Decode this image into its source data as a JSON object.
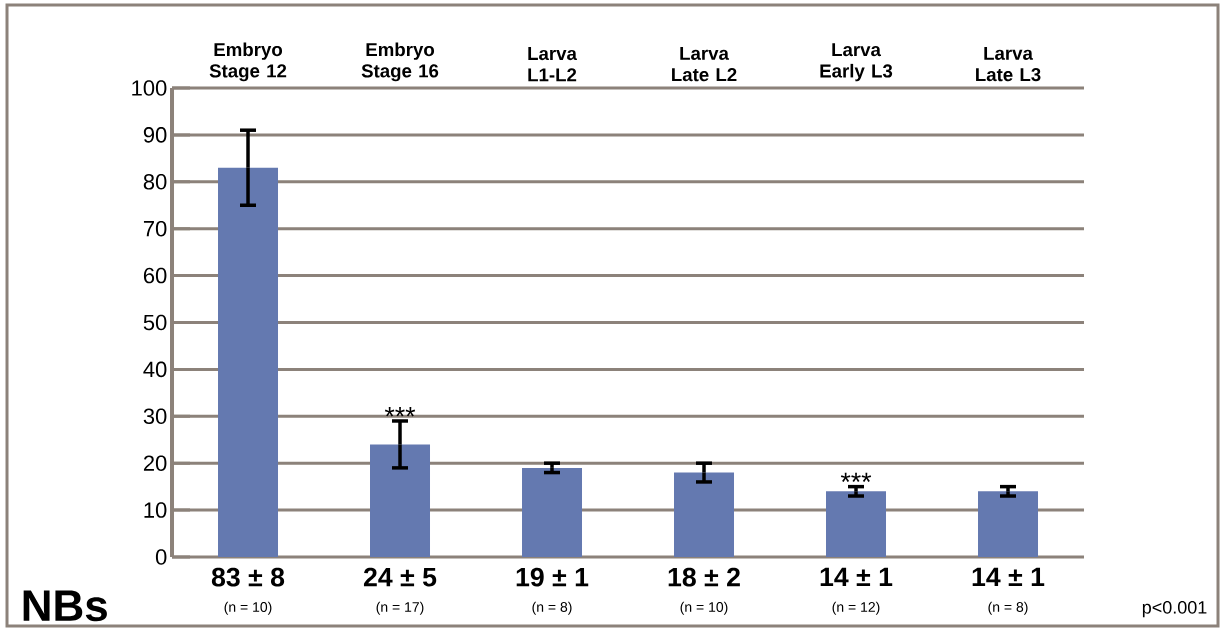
{
  "chart_data": {
    "type": "bar",
    "categories": [
      "Embryo Stage 12",
      "Embryo Stage 16",
      "Larva L1-L2",
      "Larva Late L2",
      "Larva Early L3",
      "Larva Late L3"
    ],
    "values": [
      83,
      24,
      19,
      18,
      14,
      14
    ],
    "errors": [
      8,
      5,
      1,
      2,
      1,
      1
    ],
    "value_labels": [
      "83 ± 8",
      "24 ± 5",
      "19 ± 1",
      "18 ± 2",
      "14 ± 1",
      "14 ± 1"
    ],
    "color": "#6479b0",
    "ylabel": "NBs",
    "ylim": [
      0,
      100
    ],
    "yticks": [
      0,
      10,
      20,
      30,
      40,
      50,
      60,
      70,
      80,
      90,
      100
    ],
    "grid": "y",
    "annotations": [
      "(n = 10)",
      "(n = 17)",
      "(n = 8)",
      "(n = 10)",
      "(n = 12)",
      "(n = 8)",
      {
        "text": "***",
        "x": "Embryo Stage 16",
        "y": 29
      },
      {
        "text": "***",
        "x": "Larva Early L3",
        "y": 15
      },
      "p<0.001"
    ]
  }
}
